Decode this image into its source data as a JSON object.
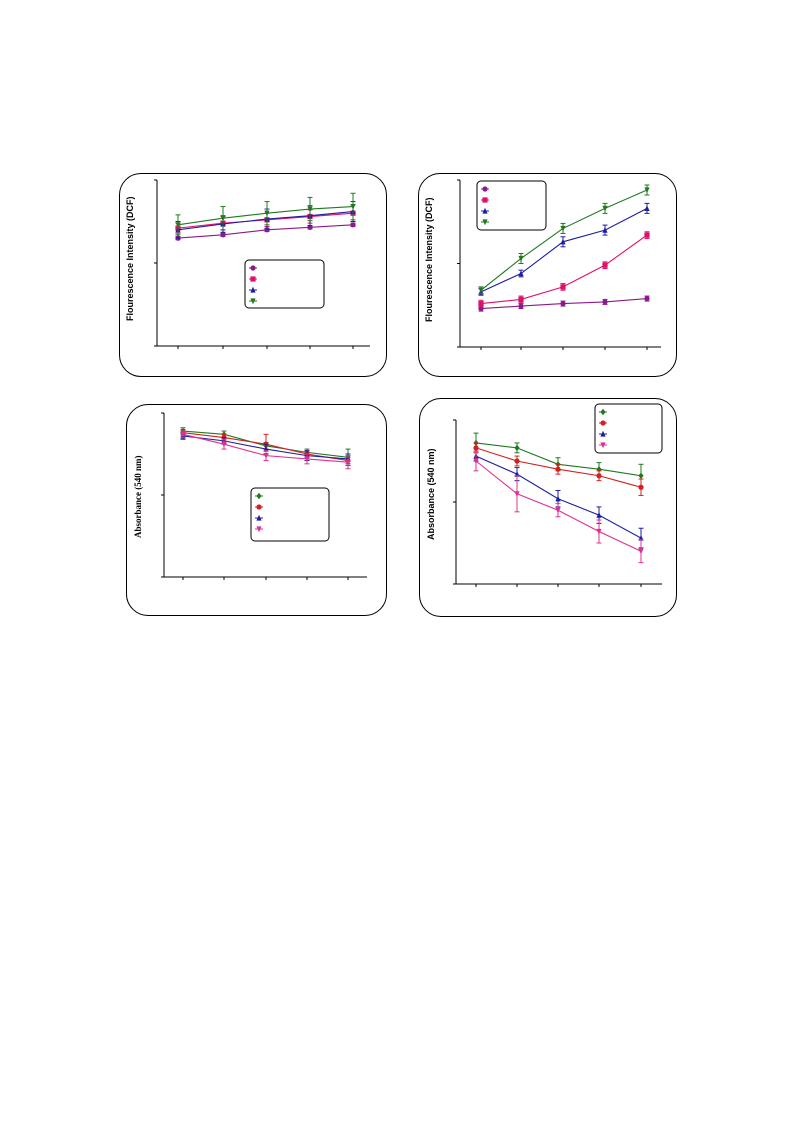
{
  "chart_data": [
    {
      "type": "line",
      "ylabel": "Flourescence Intensity (DCF)",
      "x": [
        1,
        2,
        3,
        4,
        5
      ],
      "ylim": [
        0,
        1
      ],
      "series": [
        {
          "color": "#8B1A8B",
          "marker": "circle",
          "values": [
            0.65,
            0.67,
            0.7,
            0.715,
            0.73
          ],
          "err": [
            0.01,
            0.01,
            0.01,
            0.01,
            0.01
          ]
        },
        {
          "color": "#E0106A",
          "marker": "square",
          "values": [
            0.71,
            0.74,
            0.76,
            0.78,
            0.8
          ],
          "err": [
            0.03,
            0.04,
            0.04,
            0.04,
            0.05
          ]
        },
        {
          "color": "#1E1EA0",
          "marker": "triangle",
          "values": [
            0.7,
            0.735,
            0.765,
            0.785,
            0.81
          ],
          "err": [
            0.05,
            0.05,
            0.06,
            0.06,
            0.06
          ]
        },
        {
          "color": "#1F7A1F",
          "marker": "triangle-down",
          "values": [
            0.73,
            0.77,
            0.8,
            0.825,
            0.84
          ],
          "err": [
            0.06,
            0.07,
            0.07,
            0.07,
            0.08
          ]
        }
      ],
      "legend_position": "lower-right"
    },
    {
      "type": "line",
      "ylabel": "Flourescence Intensity (DCF)",
      "x": [
        1,
        2,
        3,
        4,
        5
      ],
      "ylim": [
        0,
        1
      ],
      "series": [
        {
          "color": "#8B1A8B",
          "marker": "circle",
          "values": [
            0.23,
            0.245,
            0.26,
            0.27,
            0.29
          ],
          "err": [
            0.015,
            0.015,
            0.015,
            0.015,
            0.015
          ]
        },
        {
          "color": "#E0106A",
          "marker": "square",
          "values": [
            0.26,
            0.285,
            0.36,
            0.49,
            0.67
          ],
          "err": [
            0.02,
            0.02,
            0.02,
            0.02,
            0.02
          ]
        },
        {
          "color": "#1E1EA0",
          "marker": "triangle",
          "values": [
            0.33,
            0.44,
            0.63,
            0.7,
            0.83
          ],
          "err": [
            0.02,
            0.02,
            0.03,
            0.03,
            0.03
          ]
        },
        {
          "color": "#1F7A1F",
          "marker": "triangle-down",
          "values": [
            0.34,
            0.53,
            0.71,
            0.83,
            0.94
          ],
          "err": [
            0.02,
            0.03,
            0.03,
            0.03,
            0.03
          ]
        }
      ],
      "legend_position": "top-left"
    },
    {
      "type": "line",
      "ylabel": "Absorbance (540 nm)",
      "x": [
        1,
        2,
        3,
        4,
        5
      ],
      "ylim": [
        0,
        1
      ],
      "series": [
        {
          "color": "#1F7A1F",
          "marker": "diamond",
          "values": [
            0.89,
            0.87,
            0.8,
            0.76,
            0.73
          ],
          "err": [
            0.02,
            0.02,
            0.02,
            0.02,
            0.05
          ]
        },
        {
          "color": "#D42020",
          "marker": "circle",
          "values": [
            0.88,
            0.85,
            0.81,
            0.75,
            0.71
          ],
          "err": [
            0.02,
            0.02,
            0.06,
            0.02,
            0.03
          ]
        },
        {
          "color": "#1E1EA0",
          "marker": "triangle",
          "values": [
            0.86,
            0.83,
            0.78,
            0.74,
            0.72
          ],
          "err": [
            0.02,
            0.02,
            0.03,
            0.03,
            0.03
          ]
        },
        {
          "color": "#E0308F",
          "marker": "triangle-down",
          "values": [
            0.87,
            0.81,
            0.74,
            0.72,
            0.7
          ],
          "err": [
            0.02,
            0.03,
            0.03,
            0.03,
            0.04
          ]
        }
      ],
      "legend_position": "lower-right"
    },
    {
      "type": "line",
      "ylabel": "Absorbance (540 nm)",
      "x": [
        1,
        2,
        3,
        4,
        5
      ],
      "ylim": [
        0,
        1
      ],
      "series": [
        {
          "color": "#1F7A1F",
          "marker": "diamond",
          "values": [
            0.86,
            0.83,
            0.73,
            0.7,
            0.66
          ],
          "err": [
            0.06,
            0.03,
            0.04,
            0.04,
            0.07
          ]
        },
        {
          "color": "#D42020",
          "marker": "circle",
          "values": [
            0.83,
            0.75,
            0.7,
            0.66,
            0.59
          ],
          "err": [
            0.03,
            0.03,
            0.03,
            0.03,
            0.05
          ]
        },
        {
          "color": "#1E1EA0",
          "marker": "triangle",
          "values": [
            0.78,
            0.67,
            0.52,
            0.42,
            0.28
          ],
          "err": [
            0.03,
            0.04,
            0.05,
            0.05,
            0.06
          ]
        },
        {
          "color": "#E0308F",
          "marker": "triangle-down",
          "values": [
            0.75,
            0.55,
            0.45,
            0.32,
            0.2
          ],
          "err": [
            0.06,
            0.11,
            0.04,
            0.07,
            0.07
          ]
        }
      ],
      "legend_position": "top-right"
    }
  ]
}
